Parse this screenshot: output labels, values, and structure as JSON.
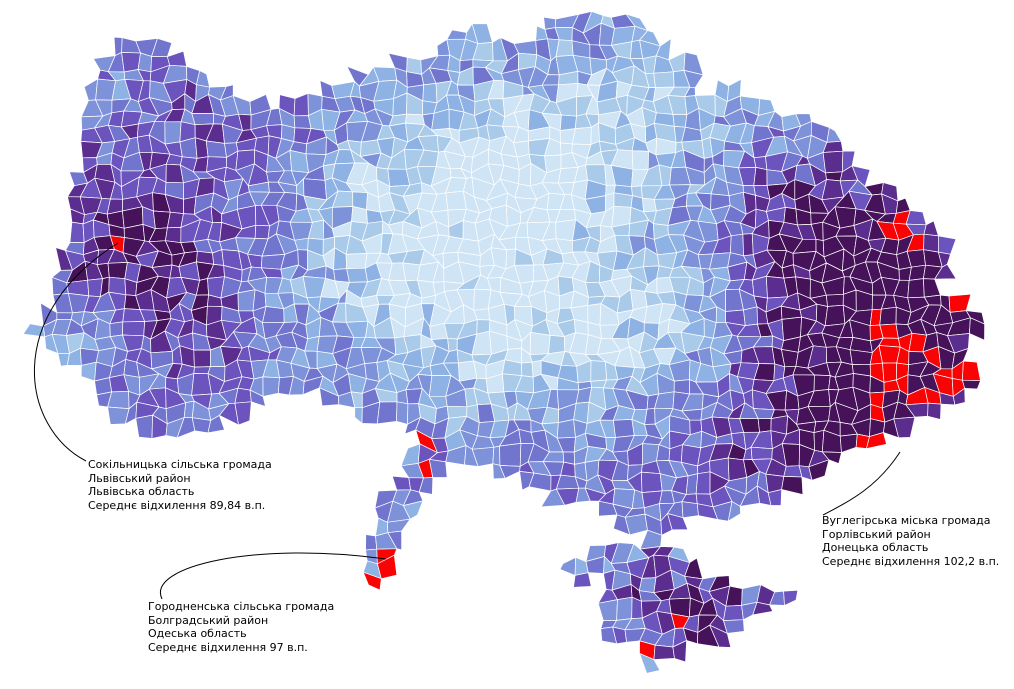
{
  "map": {
    "palette": [
      "#cfe4f4",
      "#a9cbe9",
      "#8fb2e5",
      "#7e92da",
      "#7175ce",
      "#6b54bd",
      "#5b2d8e",
      "#46135a"
    ],
    "red_color": "#f80404",
    "border_color": "#ffffff",
    "background_color": "#ffffff",
    "callout_color": "#000000"
  },
  "annotations": [
    {
      "lines": [
        "Сокільницька сільська громада",
        "Львівський район",
        "Львівська область",
        "Середнє відхилення 89,84 в.п."
      ]
    },
    {
      "lines": [
        "Городненська сільська громада",
        "Болградський район",
        "Одеська область",
        "Середнє відхилення 97 в.п."
      ]
    },
    {
      "lines": [
        "Вуглегірська міська громада",
        "Горлівський район",
        "Донецька область",
        "Середнє відхилення 102,2 в.п."
      ]
    }
  ]
}
